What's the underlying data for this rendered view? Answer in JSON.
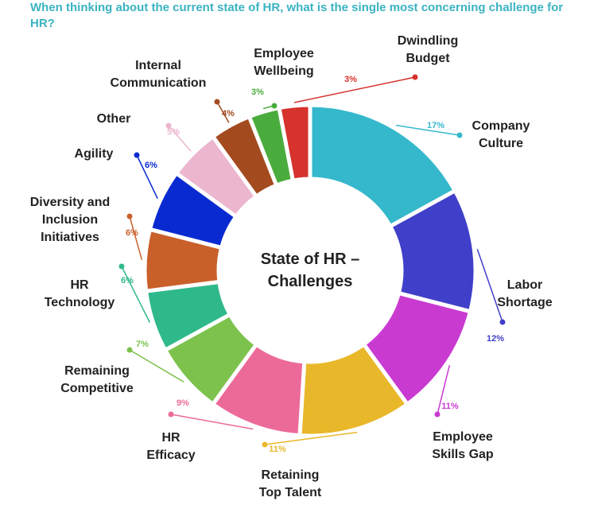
{
  "question": "When thinking about the current state of HR, what is the single most concerning challenge for HR?",
  "chart_data": {
    "type": "donut",
    "title": "State of HR – Challenges",
    "categories": [
      "Company Culture",
      "Labor Shortage",
      "Employee Skills Gap",
      "Retaining Top Talent",
      "HR Efficacy",
      "Remaining Competitive",
      "HR Technology",
      "Diversity and Inclusion Initiatives",
      "Agility",
      "Other",
      "Internal Communication",
      "Employee Wellbeing",
      "Dwindling Budget"
    ],
    "values": [
      17,
      12,
      11,
      11,
      9,
      7,
      6,
      6,
      6,
      5,
      4,
      3,
      3
    ],
    "value_labels": [
      "17%",
      "12%",
      "11%",
      "11%",
      "9%",
      "7%",
      "6%",
      "6%",
      "6%",
      "5%",
      "4%",
      "3%",
      "3%"
    ],
    "colors": [
      "#35b8cb",
      "#3f3fc9",
      "#c93ad1",
      "#e9b82a",
      "#ec6a99",
      "#7dc24d",
      "#2fb98a",
      "#c9602a",
      "#0a2ad1",
      "#ecb6cf",
      "#a44a1f",
      "#4aac3d",
      "#d6322e"
    ]
  }
}
